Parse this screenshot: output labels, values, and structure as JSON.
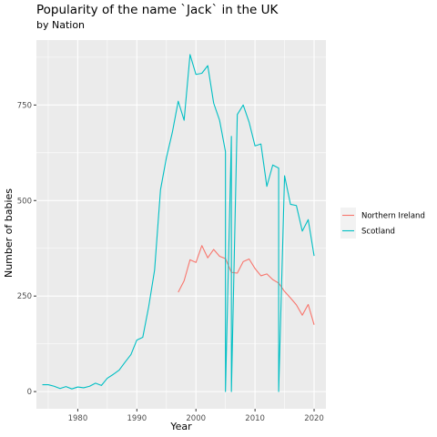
{
  "chart_data": {
    "type": "line",
    "title": "Popularity of the name `Jack` in the UK",
    "subtitle": "by Nation",
    "xlabel": "Year",
    "ylabel": "Number of babies",
    "xlim": [
      1973,
      2022
    ],
    "ylim": [
      -45,
      920
    ],
    "x_ticks": [
      1980,
      1990,
      2000,
      2010,
      2020
    ],
    "y_ticks": [
      0,
      250,
      500,
      750
    ],
    "grid": true,
    "legend_position": "right",
    "series": [
      {
        "name": "Northern Ireland",
        "color": "#F8766D",
        "points": [
          [
            1997,
            260
          ],
          [
            1998,
            290
          ],
          [
            1999,
            345
          ],
          [
            2000,
            338
          ],
          [
            2001,
            382
          ],
          [
            2002,
            350
          ],
          [
            2003,
            372
          ],
          [
            2004,
            354
          ],
          [
            2005,
            348
          ],
          [
            2006,
            312
          ],
          [
            2007,
            310
          ],
          [
            2008,
            340
          ],
          [
            2009,
            347
          ],
          [
            2010,
            322
          ],
          [
            2011,
            303
          ],
          [
            2012,
            308
          ],
          [
            2013,
            293
          ],
          [
            2014,
            284
          ],
          [
            2015,
            262
          ],
          [
            2016,
            245
          ],
          [
            2017,
            227
          ],
          [
            2018,
            200
          ],
          [
            2019,
            228
          ],
          [
            2020,
            175
          ]
        ]
      },
      {
        "name": "Scotland",
        "color": "#00BFC4",
        "points": [
          [
            1974,
            18
          ],
          [
            1975,
            18
          ],
          [
            1976,
            14
          ],
          [
            1977,
            8
          ],
          [
            1978,
            13
          ],
          [
            1979,
            7
          ],
          [
            1980,
            12
          ],
          [
            1981,
            10
          ],
          [
            1982,
            14
          ],
          [
            1983,
            22
          ],
          [
            1984,
            16
          ],
          [
            1985,
            35
          ],
          [
            1986,
            45
          ],
          [
            1987,
            56
          ],
          [
            1988,
            77
          ],
          [
            1989,
            97
          ],
          [
            1990,
            135
          ],
          [
            1991,
            142
          ],
          [
            1992,
            222
          ],
          [
            1993,
            318
          ],
          [
            1994,
            528
          ],
          [
            1995,
            612
          ],
          [
            1996,
            678
          ],
          [
            1997,
            760
          ],
          [
            1998,
            710
          ],
          [
            1999,
            882
          ],
          [
            2000,
            830
          ],
          [
            2001,
            833
          ],
          [
            2002,
            853
          ],
          [
            2003,
            755
          ],
          [
            2004,
            710
          ],
          [
            2005,
            628
          ],
          [
            2005,
            0
          ],
          [
            2006,
            668
          ],
          [
            2006,
            0
          ],
          [
            2007,
            725
          ],
          [
            2008,
            750
          ],
          [
            2009,
            705
          ],
          [
            2010,
            643
          ],
          [
            2011,
            648
          ],
          [
            2012,
            537
          ],
          [
            2013,
            593
          ],
          [
            2014,
            585
          ],
          [
            2014,
            0
          ],
          [
            2015,
            565
          ],
          [
            2016,
            490
          ],
          [
            2017,
            487
          ],
          [
            2018,
            420
          ],
          [
            2019,
            450
          ],
          [
            2020,
            355
          ]
        ]
      }
    ]
  }
}
